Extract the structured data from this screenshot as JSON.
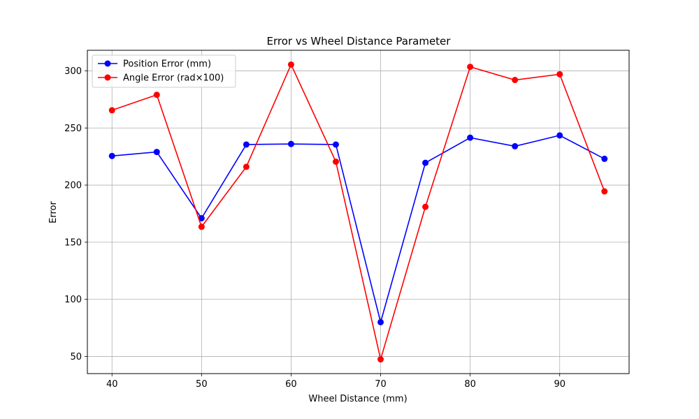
{
  "chart_data": {
    "type": "line",
    "title": "Error vs Wheel Distance Parameter",
    "xlabel": "Wheel Distance (mm)",
    "ylabel": "Error",
    "x": [
      40,
      45,
      50,
      55,
      60,
      65,
      70,
      75,
      80,
      85,
      90,
      95
    ],
    "xlim": [
      37.25,
      97.75
    ],
    "ylim": [
      35,
      318
    ],
    "xticks": [
      40,
      50,
      60,
      70,
      80,
      90
    ],
    "yticks": [
      50,
      100,
      150,
      200,
      250,
      300
    ],
    "grid": true,
    "legend_position": "upper-left",
    "series": [
      {
        "name": "Position Error (mm)",
        "color": "#0000ff",
        "marker": "circle",
        "values": [
          225.5,
          229,
          171,
          235.5,
          236,
          235.5,
          80,
          219.5,
          241.5,
          234,
          243.5,
          223
        ]
      },
      {
        "name": "Angle Error (rad×100)",
        "color": "#ff0000",
        "marker": "circle",
        "values": [
          265.5,
          279,
          163.5,
          216,
          305.5,
          220.5,
          47.5,
          181,
          303.5,
          292,
          297,
          194.5
        ]
      }
    ]
  }
}
